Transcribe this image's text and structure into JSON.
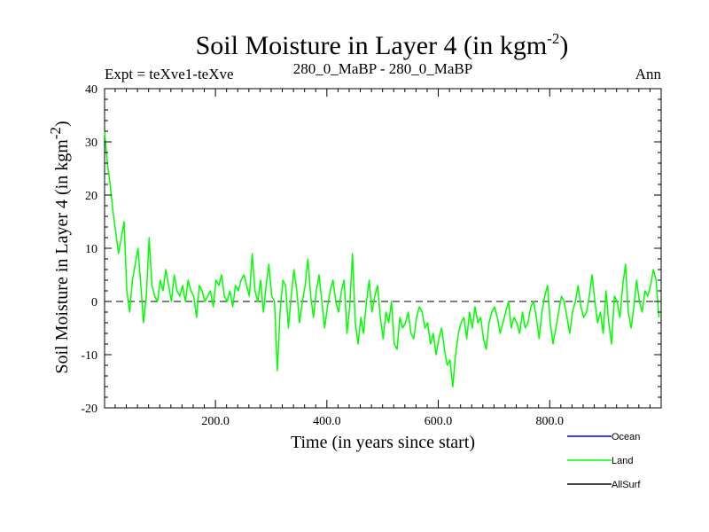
{
  "chart_data": {
    "type": "line",
    "title": "Soil Moisture in Layer 4 (in kgm",
    "title_sup": "-2",
    "title_tail": ")",
    "subtitle_left": "Expt = teXve1-teXve",
    "subtitle_center": "280_0_MaBP - 280_0_MaBP",
    "subtitle_right": "Ann",
    "xlabel": "Time (in years since start)",
    "ylabel": "Soil Moisture in Layer 4 (in kgm",
    "ylabel_sup": "-2",
    "ylabel_tail": ")",
    "xlim": [
      1,
      1000
    ],
    "ylim": [
      -20,
      40
    ],
    "x_ticks": [
      200,
      400,
      600,
      800
    ],
    "x_tick_labels": [
      "200.0",
      "400.0",
      "600.0",
      "800.0"
    ],
    "y_ticks": [
      -20,
      -10,
      0,
      10,
      20,
      30,
      40
    ],
    "y_tick_labels": [
      "-20",
      "-10",
      "0",
      "10",
      "20",
      "30",
      "40"
    ],
    "zero_line": "dashed",
    "legend": [
      {
        "name": "Ocean",
        "color": "#0000ff"
      },
      {
        "name": "Land",
        "color": "#00ff00"
      },
      {
        "name": "AllSurf",
        "color": "#000000"
      }
    ],
    "series": [
      {
        "name": "Land",
        "color": "#00ff00",
        "x_step": 5,
        "values": [
          32,
          26,
          22,
          17,
          13,
          9,
          12,
          15,
          2,
          -2,
          4,
          7,
          10,
          3,
          -4,
          1,
          12,
          3,
          1,
          0,
          4,
          2,
          6,
          3,
          0,
          5,
          2,
          1,
          3,
          0,
          4,
          2,
          1,
          -3,
          3,
          2,
          0,
          1,
          2,
          -1,
          4,
          3,
          5,
          1,
          0,
          2,
          -1,
          3,
          2,
          4,
          5,
          3,
          1,
          9,
          2,
          0,
          4,
          -2,
          3,
          7,
          1,
          0,
          -13,
          -2,
          4,
          3,
          -5,
          1,
          6,
          2,
          -4,
          0,
          3,
          8,
          1,
          -3,
          2,
          5,
          0,
          -5,
          -1,
          2,
          4,
          0,
          -2,
          2,
          4,
          -6,
          -1,
          9,
          -4,
          -8,
          -3,
          -6,
          0,
          4,
          -2,
          1,
          3,
          -3,
          -7,
          -2,
          -4,
          0,
          -8,
          -9,
          -3,
          -5,
          -4,
          -2,
          -6,
          -7,
          -3,
          -1,
          -2,
          -5,
          -4,
          -8,
          -6,
          -10,
          -7,
          -5,
          -9,
          -12,
          -11,
          -16,
          -10,
          -6,
          -4,
          -3,
          -7,
          -2,
          -5,
          -1,
          -4,
          -3,
          -7,
          -9,
          -4,
          -2,
          -1,
          -3,
          -6,
          -4,
          -2,
          0,
          -5,
          -3,
          -4,
          -6,
          -2,
          -5,
          -4,
          -1,
          0,
          -3,
          -7,
          -2,
          1,
          3,
          -4,
          -8,
          -5,
          -2,
          1,
          0,
          -3,
          -6,
          -2,
          0,
          3,
          -1,
          -3,
          -2,
          1,
          5,
          0,
          -4,
          -2,
          -6,
          2,
          -4,
          -8,
          1,
          0,
          -3,
          3,
          7,
          -2,
          -5,
          -1,
          4,
          0,
          -2,
          2,
          1,
          3,
          6,
          4,
          -3
        ]
      }
    ]
  }
}
